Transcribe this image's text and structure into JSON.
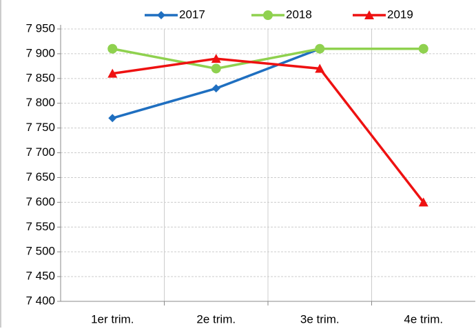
{
  "chart_data": {
    "type": "line",
    "categories": [
      "1er trim.",
      "2e trim.",
      "3e trim.",
      "4e trim."
    ],
    "series": [
      {
        "name": "2017",
        "color": "#1f6fc0",
        "marker": "diamond",
        "values": [
          7770,
          7830,
          7910,
          null
        ]
      },
      {
        "name": "2018",
        "color": "#8fd14f",
        "marker": "circle",
        "values": [
          7910,
          7870,
          7910,
          7910
        ]
      },
      {
        "name": "2019",
        "color": "#ee1111",
        "marker": "triangle",
        "values": [
          7860,
          7890,
          7870,
          7600
        ]
      }
    ],
    "ylim": [
      7400,
      7950
    ],
    "yticks": [
      {
        "value": 7400,
        "label": "7 400"
      },
      {
        "value": 7450,
        "label": "7 450"
      },
      {
        "value": 7500,
        "label": "7 500"
      },
      {
        "value": 7550,
        "label": "7 550"
      },
      {
        "value": 7600,
        "label": "7 600"
      },
      {
        "value": 7650,
        "label": "7 650"
      },
      {
        "value": 7700,
        "label": "7 700"
      },
      {
        "value": 7750,
        "label": "7 750"
      },
      {
        "value": 7800,
        "label": "7 800"
      },
      {
        "value": 7850,
        "label": "7 850"
      },
      {
        "value": 7900,
        "label": "7 900"
      },
      {
        "value": 7950,
        "label": "7 950"
      }
    ],
    "grid": true,
    "legend": "top"
  }
}
